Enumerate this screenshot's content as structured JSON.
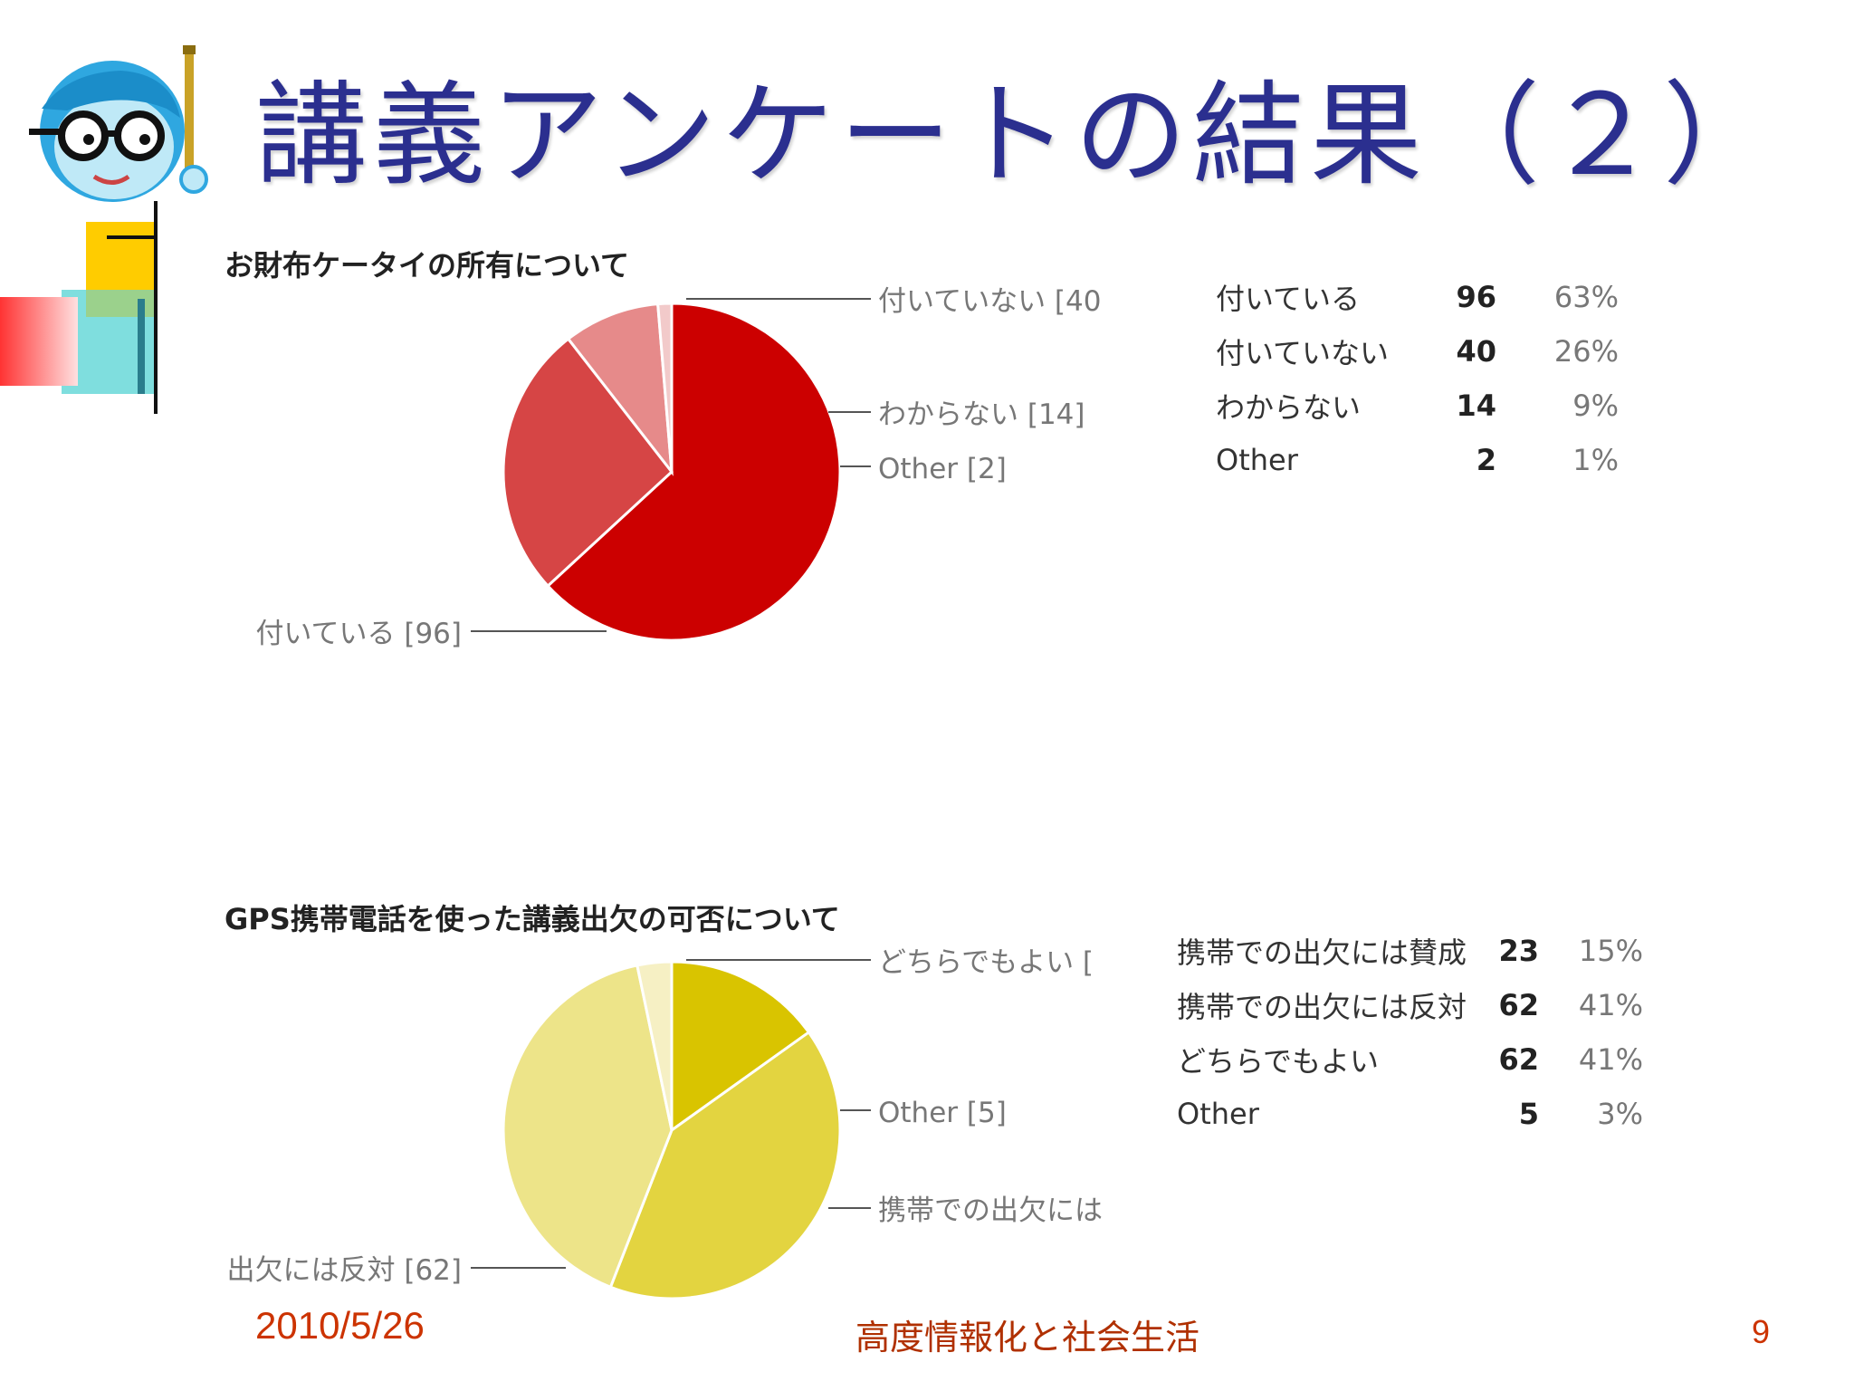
{
  "slide": {
    "title": "講義アンケートの結果（２）",
    "footer_date": "2010/5/26",
    "footer_course": "高度情報化と社会生活",
    "page_number": "9"
  },
  "chart_data": [
    {
      "type": "pie",
      "title": "お財布ケータイの所有について",
      "slices": [
        {
          "label": "付いている",
          "callout": "付いている [96]",
          "value": 96,
          "percent": "63%",
          "color": "#cc0000"
        },
        {
          "label": "付いていない",
          "callout": "付いていない [40",
          "value": 40,
          "percent": "26%",
          "color": "#d64545"
        },
        {
          "label": "わからない",
          "callout": "わからない [14]",
          "value": 14,
          "percent": "9%",
          "color": "#e68a8a"
        },
        {
          "label": "Other",
          "callout": "Other [2]",
          "value": 2,
          "percent": "1%",
          "color": "#f2caca"
        }
      ]
    },
    {
      "type": "pie",
      "title": "GPS携帯電話を使った講義出欠の可否について",
      "slices": [
        {
          "label": "携帯での出欠には賛成",
          "callout": "携帯での出欠には",
          "value": 23,
          "percent": "15%",
          "color": "#d9c400"
        },
        {
          "label": "携帯での出欠には反対",
          "callout": "出欠には反対 [62]",
          "value": 62,
          "percent": "41%",
          "color": "#e3d440"
        },
        {
          "label": "どちらでもよい",
          "callout": "どちらでもよい [",
          "value": 62,
          "percent": "41%",
          "color": "#ede489"
        },
        {
          "label": "Other",
          "callout": "Other [5]",
          "value": 5,
          "percent": "3%",
          "color": "#f6f0c4"
        }
      ]
    }
  ]
}
